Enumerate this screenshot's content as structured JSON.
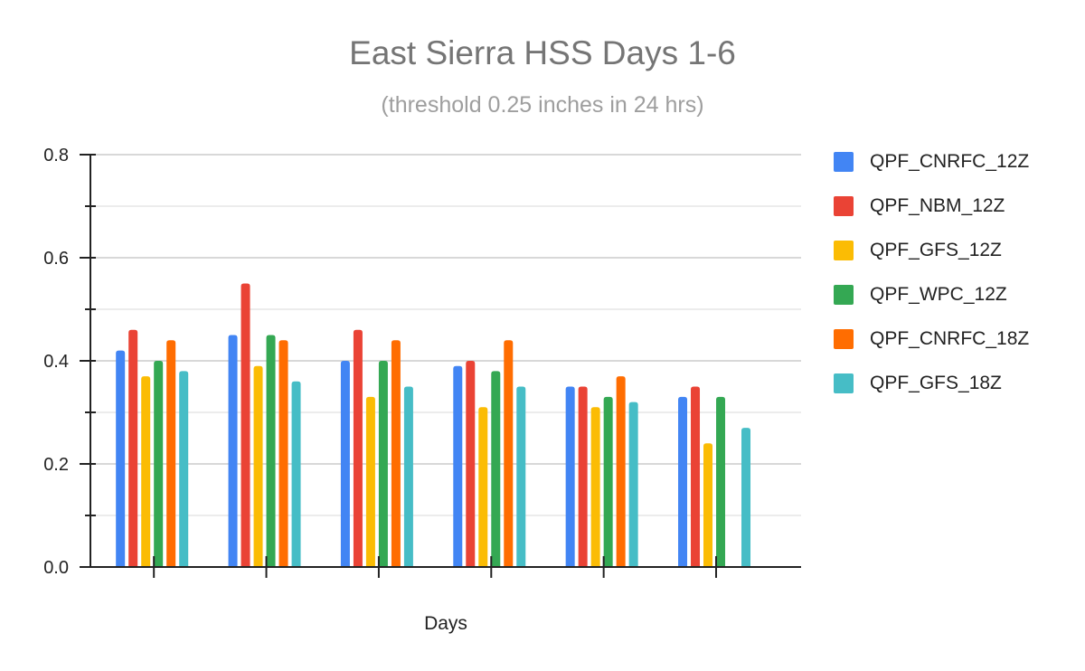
{
  "chart_data": {
    "type": "bar",
    "title": "East Sierra HSS Days 1-6",
    "subtitle": "(threshold 0.25 inches in 24 hrs)",
    "xlabel": "Days",
    "ylabel": "",
    "categories": [
      "",
      "",
      "",
      "",
      "",
      ""
    ],
    "ylim": [
      0,
      0.8
    ],
    "yticks": [
      "0.0",
      "0.2",
      "0.4",
      "0.6",
      "0.8"
    ],
    "grid": true,
    "legend_position": "right",
    "series": [
      {
        "name": "QPF_CNRFC_12Z",
        "color": "#4285f4",
        "values": [
          0.42,
          0.45,
          0.4,
          0.39,
          0.35,
          0.33
        ]
      },
      {
        "name": "QPF_NBM_12Z",
        "color": "#ea4335",
        "values": [
          0.46,
          0.55,
          0.46,
          0.4,
          0.35,
          0.35
        ]
      },
      {
        "name": "QPF_GFS_12Z",
        "color": "#fbbc04",
        "values": [
          0.37,
          0.39,
          0.33,
          0.31,
          0.31,
          0.24
        ]
      },
      {
        "name": "QPF_WPC_12Z",
        "color": "#34a853",
        "values": [
          0.4,
          0.45,
          0.4,
          0.38,
          0.33,
          0.33
        ]
      },
      {
        "name": "QPF_CNRFC_18Z",
        "color": "#ff6d01",
        "values": [
          0.44,
          0.44,
          0.44,
          0.44,
          0.37,
          null
        ]
      },
      {
        "name": "QPF_GFS_18Z",
        "color": "#46bdc6",
        "values": [
          0.38,
          0.36,
          0.35,
          0.35,
          0.32,
          0.27
        ]
      }
    ]
  }
}
